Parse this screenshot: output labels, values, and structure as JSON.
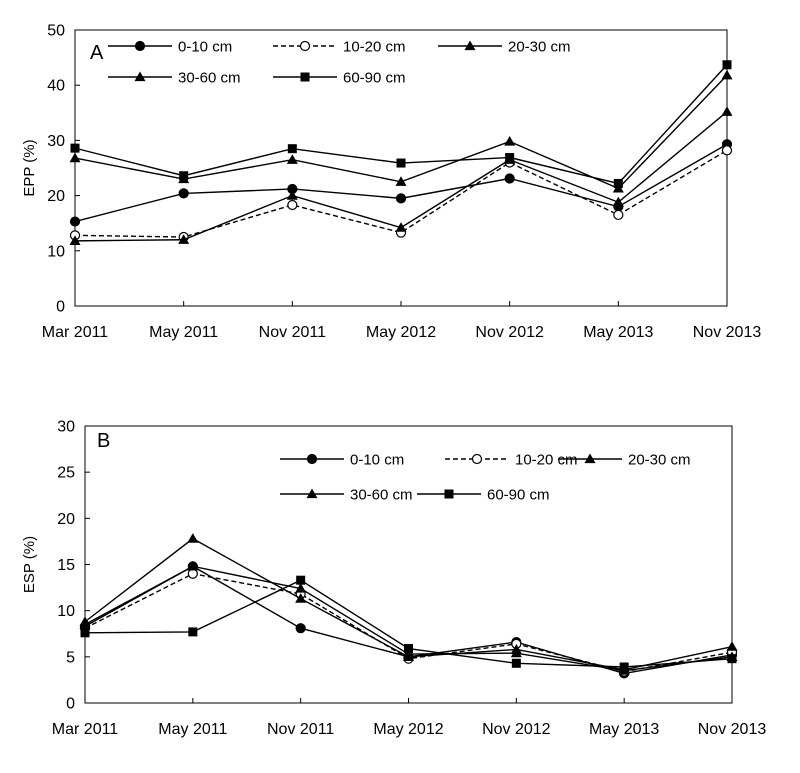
{
  "chart_data": [
    {
      "type": "line",
      "panel_label": "A",
      "ylabel": "EPP (%)",
      "xlabel": "",
      "ylim": [
        0,
        50
      ],
      "yticks": [
        0,
        10,
        20,
        30,
        40,
        50
      ],
      "categories": [
        "Mar 2011",
        "May 2011",
        "Nov 2011",
        "May 2012",
        "Nov 2012",
        "May 2013",
        "Nov 2013"
      ],
      "grid": false,
      "legend_position": "top",
      "series": [
        {
          "name": "0-10 cm",
          "marker": "circle",
          "fill": "solid",
          "dash": "solid",
          "values": [
            15.3,
            20.4,
            21.2,
            19.5,
            23.1,
            18.0,
            29.3
          ]
        },
        {
          "name": "10-20 cm",
          "marker": "circle",
          "fill": "open",
          "dash": "dashed",
          "values": [
            12.8,
            12.5,
            18.3,
            13.3,
            26.0,
            16.5,
            28.2
          ]
        },
        {
          "name": "20-30 cm",
          "marker": "triangle",
          "fill": "solid",
          "dash": "solid",
          "values": [
            11.8,
            12.0,
            20.0,
            14.2,
            26.5,
            18.8,
            35.2
          ]
        },
        {
          "name": "30-60 cm",
          "marker": "triangle",
          "fill": "solid",
          "dash": "solid",
          "values": [
            26.8,
            23.0,
            26.5,
            22.5,
            29.8,
            21.3,
            41.8
          ]
        },
        {
          "name": "60-90 cm",
          "marker": "square",
          "fill": "solid",
          "dash": "solid",
          "values": [
            28.6,
            23.6,
            28.5,
            25.9,
            26.9,
            22.2,
            43.7
          ]
        }
      ]
    },
    {
      "type": "line",
      "panel_label": "B",
      "ylabel": "ESP (%)",
      "xlabel": "",
      "ylim": [
        0,
        30
      ],
      "yticks": [
        0,
        5,
        10,
        15,
        20,
        25,
        30
      ],
      "categories": [
        "Mar 2011",
        "May 2011",
        "Nov 2011",
        "May 2012",
        "Nov 2012",
        "May 2013",
        "Nov 2013"
      ],
      "grid": false,
      "legend_position": "top",
      "series": [
        {
          "name": "0-10 cm",
          "marker": "circle",
          "fill": "solid",
          "dash": "solid",
          "values": [
            8.3,
            14.8,
            8.1,
            5.0,
            6.6,
            3.2,
            5.2
          ]
        },
        {
          "name": "10-20 cm",
          "marker": "circle",
          "fill": "open",
          "dash": "dashed",
          "values": [
            8.1,
            14.0,
            11.8,
            4.8,
            6.4,
            3.4,
            5.5
          ]
        },
        {
          "name": "20-30 cm",
          "marker": "triangle",
          "fill": "solid",
          "dash": "solid",
          "values": [
            8.8,
            17.8,
            11.3,
            5.0,
            5.8,
            3.6,
            6.1
          ]
        },
        {
          "name": "30-60 cm",
          "marker": "triangle",
          "fill": "solid",
          "dash": "solid",
          "values": [
            8.5,
            14.8,
            12.4,
            5.3,
            5.4,
            3.5,
            5.0
          ]
        },
        {
          "name": "60-90 cm",
          "marker": "square",
          "fill": "solid",
          "dash": "solid",
          "values": [
            7.6,
            7.7,
            13.3,
            5.9,
            4.3,
            3.9,
            4.8
          ]
        }
      ]
    }
  ]
}
